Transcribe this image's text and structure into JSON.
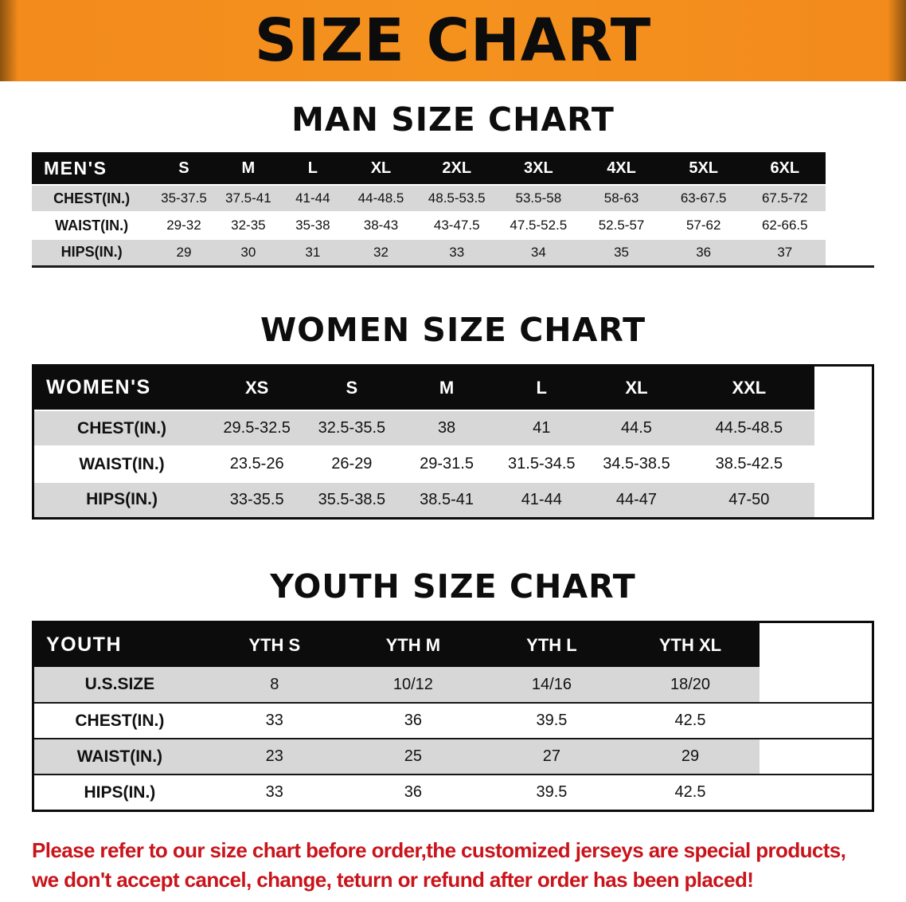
{
  "banner": {
    "title": "SIZE CHART",
    "background_color": "#f28a1c",
    "text_color": "#0c0c0c"
  },
  "men": {
    "heading": "MAN SIZE CHART",
    "header": [
      "MEN'S",
      "S",
      "M",
      "L",
      "XL",
      "2XL",
      "3XL",
      "4XL",
      "5XL",
      "6XL"
    ],
    "rows": [
      {
        "label": "CHEST(IN.)",
        "values": [
          "35-37.5",
          "37.5-41",
          "41-44",
          "44-48.5",
          "48.5-53.5",
          "53.5-58",
          "58-63",
          "63-67.5",
          "67.5-72"
        ]
      },
      {
        "label": "WAIST(IN.)",
        "values": [
          "29-32",
          "32-35",
          "35-38",
          "38-43",
          "43-47.5",
          "47.5-52.5",
          "52.5-57",
          "57-62",
          "62-66.5"
        ]
      },
      {
        "label": "HIPS(IN.)",
        "values": [
          "29",
          "30",
          "31",
          "32",
          "33",
          "34",
          "35",
          "36",
          "37"
        ]
      }
    ]
  },
  "women": {
    "heading": "WOMEN SIZE CHART",
    "header": [
      "WOMEN'S",
      "XS",
      "S",
      "M",
      "L",
      "XL",
      "XXL"
    ],
    "rows": [
      {
        "label": "CHEST(IN.)",
        "values": [
          "29.5-32.5",
          "32.5-35.5",
          "38",
          "41",
          "44.5",
          "44.5-48.5"
        ]
      },
      {
        "label": "WAIST(IN.)",
        "values": [
          "23.5-26",
          "26-29",
          "29-31.5",
          "31.5-34.5",
          "34.5-38.5",
          "38.5-42.5"
        ]
      },
      {
        "label": "HIPS(IN.)",
        "values": [
          "33-35.5",
          "35.5-38.5",
          "38.5-41",
          "41-44",
          "44-47",
          "47-50"
        ]
      }
    ]
  },
  "youth": {
    "heading": "YOUTH SIZE CHART",
    "header": [
      "YOUTH",
      "YTH S",
      "YTH M",
      "YTH L",
      "YTH XL"
    ],
    "rows": [
      {
        "label": "U.S.SIZE",
        "values": [
          "8",
          "10/12",
          "14/16",
          "18/20"
        ]
      },
      {
        "label": "CHEST(IN.)",
        "values": [
          "33",
          "36",
          "39.5",
          "42.5"
        ]
      },
      {
        "label": "WAIST(IN.)",
        "values": [
          "23",
          "25",
          "27",
          "29"
        ]
      },
      {
        "label": "HIPS(IN.)",
        "values": [
          "33",
          "36",
          "39.5",
          "42.5"
        ]
      }
    ]
  },
  "footer": {
    "text_color": "#c9141b",
    "lines": [
      "Please refer to our size chart before order,the customized jerseys are special products,",
      "we don't accept cancel, change, teturn or refund after order has been placed!"
    ]
  },
  "colors": {
    "banner_orange": "#f28a1c",
    "table_header_bg": "#0c0c0c",
    "table_header_text": "#ffffff",
    "row_shade_gray": "#d7d7d7",
    "notice_red": "#c9141b"
  }
}
